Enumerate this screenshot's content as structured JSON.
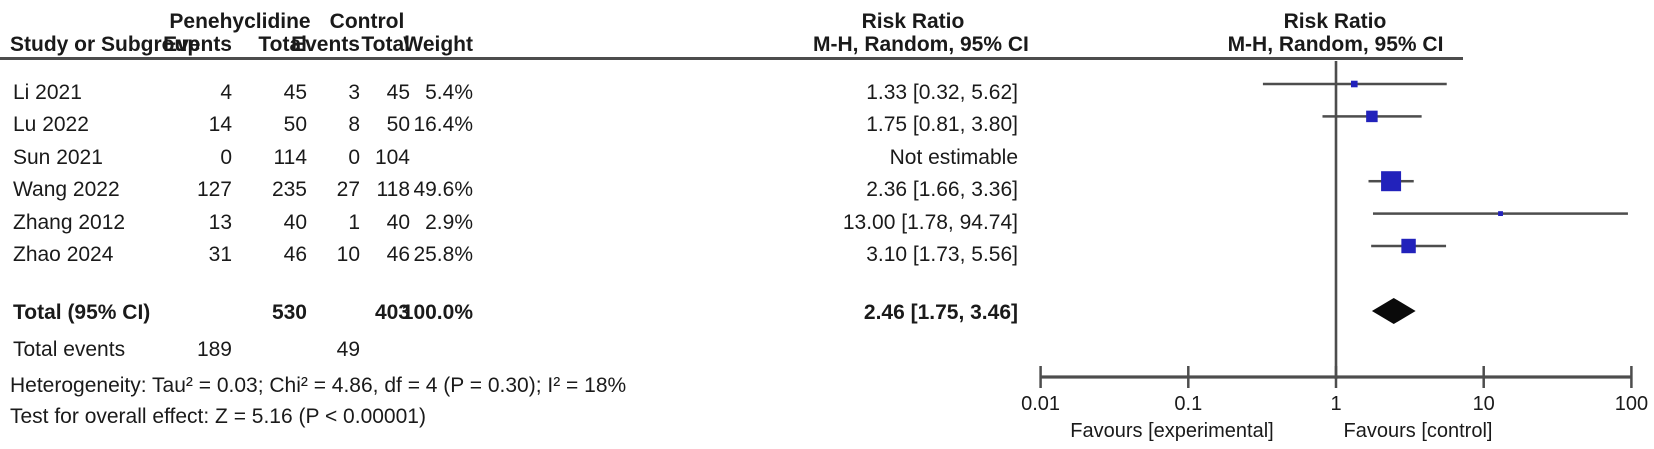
{
  "chart_data": {
    "type": "forest",
    "effect_measure": "Risk Ratio",
    "method": "M-H, Random, 95% CI",
    "headers": {
      "study": "Study or Subgroup",
      "group1": "Penehyclidine",
      "group2": "Control",
      "events": "Events",
      "total": "Total",
      "weight": "Weight",
      "rr_title": "Risk Ratio",
      "rr_sub": "M-H, Random, 95% CI",
      "plot_title": "Risk Ratio",
      "plot_sub": "M-H, Random, 95% CI"
    },
    "studies": [
      {
        "name": "Li 2021",
        "events1": "4",
        "total1": "45",
        "events2": "3",
        "total2": "45",
        "weight": "5.4%",
        "weight_val": 5.4,
        "rr": 1.33,
        "lo": 0.32,
        "hi": 5.62,
        "rr_label": "1.33 [0.32, 5.62]",
        "estimable": true
      },
      {
        "name": "Lu 2022",
        "events1": "14",
        "total1": "50",
        "events2": "8",
        "total2": "50",
        "weight": "16.4%",
        "weight_val": 16.4,
        "rr": 1.75,
        "lo": 0.81,
        "hi": 3.8,
        "rr_label": "1.75 [0.81, 3.80]",
        "estimable": true
      },
      {
        "name": "Sun 2021",
        "events1": "0",
        "total1": "114",
        "events2": "0",
        "total2": "104",
        "weight": "",
        "weight_val": 0,
        "rr": null,
        "lo": null,
        "hi": null,
        "rr_label": "Not estimable",
        "estimable": false
      },
      {
        "name": "Wang 2022",
        "events1": "127",
        "total1": "235",
        "events2": "27",
        "total2": "118",
        "weight": "49.6%",
        "weight_val": 49.6,
        "rr": 2.36,
        "lo": 1.66,
        "hi": 3.36,
        "rr_label": "2.36 [1.66, 3.36]",
        "estimable": true
      },
      {
        "name": "Zhang 2012",
        "events1": "13",
        "total1": "40",
        "events2": "1",
        "total2": "40",
        "weight": "2.9%",
        "weight_val": 2.9,
        "rr": 13.0,
        "lo": 1.78,
        "hi": 94.74,
        "rr_label": "13.00 [1.78, 94.74]",
        "estimable": true
      },
      {
        "name": "Zhao 2024",
        "events1": "31",
        "total1": "46",
        "events2": "10",
        "total2": "46",
        "weight": "25.8%",
        "weight_val": 25.8,
        "rr": 3.1,
        "lo": 1.73,
        "hi": 5.56,
        "rr_label": "3.10 [1.73, 5.56]",
        "estimable": true
      }
    ],
    "total": {
      "label": "Total (95% CI)",
      "total1": "530",
      "total2": "403",
      "weight": "100.0%",
      "rr": 2.46,
      "lo": 1.75,
      "hi": 3.46,
      "rr_label": "2.46 [1.75, 3.46]"
    },
    "total_events": {
      "label": "Total events",
      "events1": "189",
      "events2": "49"
    },
    "footnotes": {
      "heterogeneity": "Heterogeneity: Tau² = 0.03; Chi² = 4.86, df = 4 (P = 0.30); I² = 18%",
      "overall_effect": "Test for overall effect: Z = 5.16 (P < 0.00001)"
    },
    "axis": {
      "scale": "log",
      "min": 0.01,
      "max": 100,
      "ticks": [
        0.01,
        0.1,
        1,
        10,
        100
      ],
      "tick_labels": [
        "0.01",
        "0.1",
        "1",
        "10",
        "100"
      ],
      "favours_left": "Favours [experimental]",
      "favours_right": "Favours [control]"
    },
    "colors": {
      "square": "#2222bb",
      "diamond": "#0a0a0a",
      "line": "#4d4d4d",
      "text": "#1a1a1a"
    }
  }
}
